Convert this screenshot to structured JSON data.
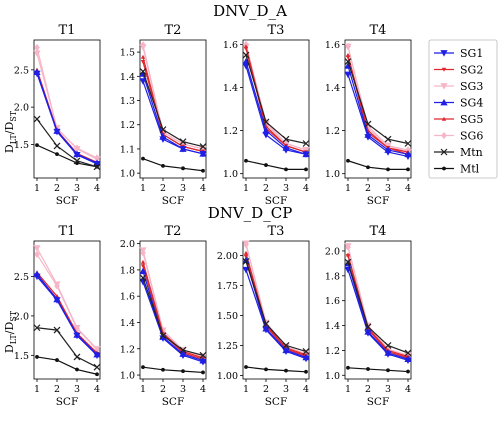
{
  "figure": {
    "row_titles": [
      "DNV_D_A",
      "DNV_D_CP"
    ],
    "panel_titles": [
      "T1",
      "T2",
      "T3",
      "T4"
    ],
    "xlabel": "SCF",
    "ylabel_main": "D",
    "ylabel_sub1": "LT",
    "ylabel_slash": "/D",
    "ylabel_sub2": "ST",
    "legend_placement": "right of top row"
  },
  "chart_data": [
    {
      "type": "line",
      "group": "DNV_D_A",
      "title": "T1",
      "x": [
        1,
        2,
        3,
        4
      ],
      "xlim": [
        0.85,
        4.15
      ],
      "ylim": [
        1.05,
        2.9
      ],
      "yticks": [
        1.5,
        2.0,
        2.5
      ],
      "ytick_labels": [
        "1.5",
        "2.0",
        "2.5"
      ],
      "series": [
        {
          "name": "SG1",
          "values": [
            2.45,
            1.67,
            1.36,
            1.24
          ]
        },
        {
          "name": "SG2",
          "values": [
            2.46,
            1.68,
            1.37,
            1.25
          ]
        },
        {
          "name": "SG3",
          "values": [
            2.72,
            1.72,
            1.44,
            1.3
          ]
        },
        {
          "name": "SG4",
          "values": [
            2.47,
            1.68,
            1.37,
            1.25
          ]
        },
        {
          "name": "SG5",
          "values": [
            2.5,
            1.69,
            1.38,
            1.26
          ]
        },
        {
          "name": "SG6",
          "values": [
            2.8,
            1.71,
            1.45,
            1.32
          ]
        },
        {
          "name": "Mtn",
          "values": [
            1.84,
            1.48,
            1.28,
            1.2
          ]
        },
        {
          "name": "Mtl",
          "values": [
            1.49,
            1.37,
            1.25,
            1.2
          ]
        }
      ]
    },
    {
      "type": "line",
      "group": "DNV_D_A",
      "title": "T2",
      "x": [
        1,
        2,
        3,
        4
      ],
      "xlim": [
        0.85,
        4.15
      ],
      "ylim": [
        0.98,
        1.55
      ],
      "yticks": [
        1.0,
        1.1,
        1.2,
        1.3,
        1.4,
        1.5
      ],
      "ytick_labels": [
        "1.0",
        "1.1",
        "1.2",
        "1.3",
        "1.4",
        "1.5"
      ],
      "series": [
        {
          "name": "SG1",
          "values": [
            1.38,
            1.14,
            1.1,
            1.08
          ]
        },
        {
          "name": "SG2",
          "values": [
            1.46,
            1.16,
            1.11,
            1.09
          ]
        },
        {
          "name": "SG3",
          "values": [
            1.52,
            1.17,
            1.12,
            1.1
          ]
        },
        {
          "name": "SG4",
          "values": [
            1.41,
            1.15,
            1.1,
            1.08
          ]
        },
        {
          "name": "SG5",
          "values": [
            1.48,
            1.16,
            1.11,
            1.09
          ]
        },
        {
          "name": "SG6",
          "values": [
            1.53,
            1.17,
            1.12,
            1.1
          ]
        },
        {
          "name": "Mtn",
          "values": [
            1.42,
            1.18,
            1.13,
            1.11
          ]
        },
        {
          "name": "Mtl",
          "values": [
            1.06,
            1.03,
            1.02,
            1.01
          ]
        }
      ]
    },
    {
      "type": "line",
      "group": "DNV_D_A",
      "title": "T3",
      "x": [
        1,
        2,
        3,
        4
      ],
      "xlim": [
        0.85,
        4.15
      ],
      "ylim": [
        0.98,
        1.62
      ],
      "yticks": [
        1.0,
        1.2,
        1.4,
        1.6
      ],
      "ytick_labels": [
        "1.0",
        "1.2",
        "1.4",
        "1.6"
      ],
      "series": [
        {
          "name": "SG1",
          "values": [
            1.5,
            1.18,
            1.11,
            1.09
          ]
        },
        {
          "name": "SG2",
          "values": [
            1.58,
            1.21,
            1.13,
            1.1
          ]
        },
        {
          "name": "SG3",
          "values": [
            1.59,
            1.23,
            1.14,
            1.11
          ]
        },
        {
          "name": "SG4",
          "values": [
            1.52,
            1.2,
            1.12,
            1.09
          ]
        },
        {
          "name": "SG5",
          "values": [
            1.59,
            1.22,
            1.13,
            1.1
          ]
        },
        {
          "name": "SG6",
          "values": [
            1.6,
            1.24,
            1.14,
            1.11
          ]
        },
        {
          "name": "Mtn",
          "values": [
            1.55,
            1.24,
            1.16,
            1.14
          ]
        },
        {
          "name": "Mtl",
          "values": [
            1.06,
            1.04,
            1.02,
            1.02
          ]
        }
      ]
    },
    {
      "type": "line",
      "group": "DNV_D_A",
      "title": "T4",
      "x": [
        1,
        2,
        3,
        4
      ],
      "xlim": [
        0.85,
        4.15
      ],
      "ylim": [
        0.98,
        1.62
      ],
      "yticks": [
        1.0,
        1.2,
        1.4,
        1.6
      ],
      "ytick_labels": [
        "1.0",
        "1.2",
        "1.4",
        "1.6"
      ],
      "series": [
        {
          "name": "SG1",
          "values": [
            1.46,
            1.17,
            1.1,
            1.08
          ]
        },
        {
          "name": "SG2",
          "values": [
            1.54,
            1.19,
            1.12,
            1.09
          ]
        },
        {
          "name": "SG3",
          "values": [
            1.59,
            1.21,
            1.13,
            1.1
          ]
        },
        {
          "name": "SG4",
          "values": [
            1.5,
            1.18,
            1.11,
            1.09
          ]
        },
        {
          "name": "SG5",
          "values": [
            1.55,
            1.2,
            1.12,
            1.1
          ]
        },
        {
          "name": "SG6",
          "values": [
            1.59,
            1.22,
            1.13,
            1.11
          ]
        },
        {
          "name": "Mtn",
          "values": [
            1.52,
            1.23,
            1.16,
            1.14
          ]
        },
        {
          "name": "Mtl",
          "values": [
            1.06,
            1.03,
            1.02,
            1.02
          ]
        }
      ]
    },
    {
      "type": "line",
      "group": "DNV_D_CP",
      "title": "T1",
      "x": [
        1,
        2,
        3,
        4
      ],
      "xlim": [
        0.85,
        4.15
      ],
      "ylim": [
        1.2,
        2.95
      ],
      "yticks": [
        1.5,
        2.0,
        2.5
      ],
      "ytick_labels": [
        "1.5",
        "2.0",
        "2.5"
      ],
      "series": [
        {
          "name": "SG1",
          "values": [
            2.5,
            2.2,
            1.75,
            1.5
          ]
        },
        {
          "name": "SG2",
          "values": [
            2.52,
            2.22,
            1.77,
            1.52
          ]
        },
        {
          "name": "SG3",
          "values": [
            2.86,
            2.4,
            1.85,
            1.58
          ]
        },
        {
          "name": "SG4",
          "values": [
            2.53,
            2.21,
            1.76,
            1.51
          ]
        },
        {
          "name": "SG5",
          "values": [
            2.55,
            2.25,
            1.78,
            1.53
          ]
        },
        {
          "name": "SG6",
          "values": [
            2.78,
            2.38,
            1.84,
            1.57
          ]
        },
        {
          "name": "Mtn",
          "values": [
            1.85,
            1.82,
            1.48,
            1.35
          ]
        },
        {
          "name": "Mtl",
          "values": [
            1.48,
            1.44,
            1.32,
            1.26
          ]
        }
      ]
    },
    {
      "type": "line",
      "group": "DNV_D_CP",
      "title": "T2",
      "x": [
        1,
        2,
        3,
        4
      ],
      "xlim": [
        0.85,
        4.15
      ],
      "ylim": [
        0.97,
        2.02
      ],
      "yticks": [
        1.0,
        1.2,
        1.4,
        1.6,
        1.8,
        2.0
      ],
      "ytick_labels": [
        "1.0",
        "1.2",
        "1.4",
        "1.6",
        "1.8",
        "2.0"
      ],
      "series": [
        {
          "name": "SG1",
          "values": [
            1.71,
            1.28,
            1.15,
            1.1
          ]
        },
        {
          "name": "SG2",
          "values": [
            1.83,
            1.31,
            1.17,
            1.12
          ]
        },
        {
          "name": "SG3",
          "values": [
            1.95,
            1.34,
            1.19,
            1.14
          ]
        },
        {
          "name": "SG4",
          "values": [
            1.79,
            1.29,
            1.16,
            1.11
          ]
        },
        {
          "name": "SG5",
          "values": [
            1.86,
            1.32,
            1.18,
            1.13
          ]
        },
        {
          "name": "SG6",
          "values": [
            1.93,
            1.34,
            1.19,
            1.14
          ]
        },
        {
          "name": "Mtn",
          "values": [
            1.74,
            1.3,
            1.19,
            1.15
          ]
        },
        {
          "name": "Mtl",
          "values": [
            1.06,
            1.04,
            1.03,
            1.02
          ]
        }
      ]
    },
    {
      "type": "line",
      "group": "DNV_D_CP",
      "title": "T3",
      "x": [
        1,
        2,
        3,
        4
      ],
      "xlim": [
        0.85,
        4.15
      ],
      "ylim": [
        0.97,
        2.12
      ],
      "yticks": [
        1.0,
        1.25,
        1.5,
        1.75,
        2.0
      ],
      "ytick_labels": [
        "1.00",
        "1.25",
        "1.50",
        "1.75",
        "2.00"
      ],
      "series": [
        {
          "name": "SG1",
          "values": [
            1.88,
            1.38,
            1.2,
            1.14
          ]
        },
        {
          "name": "SG2",
          "values": [
            1.99,
            1.41,
            1.22,
            1.16
          ]
        },
        {
          "name": "SG3",
          "values": [
            2.1,
            1.44,
            1.24,
            1.18
          ]
        },
        {
          "name": "SG4",
          "values": [
            1.96,
            1.39,
            1.21,
            1.15
          ]
        },
        {
          "name": "SG5",
          "values": [
            2.02,
            1.42,
            1.23,
            1.17
          ]
        },
        {
          "name": "SG6",
          "values": [
            2.09,
            1.44,
            1.24,
            1.18
          ]
        },
        {
          "name": "Mtn",
          "values": [
            1.95,
            1.43,
            1.25,
            1.2
          ]
        },
        {
          "name": "Mtl",
          "values": [
            1.07,
            1.05,
            1.04,
            1.03
          ]
        }
      ]
    },
    {
      "type": "line",
      "group": "DNV_D_CP",
      "title": "T4",
      "x": [
        1,
        2,
        3,
        4
      ],
      "xlim": [
        0.85,
        4.15
      ],
      "ylim": [
        0.97,
        2.08
      ],
      "yticks": [
        1.0,
        1.2,
        1.4,
        1.6,
        1.8,
        2.0
      ],
      "ytick_labels": [
        "1.0",
        "1.2",
        "1.4",
        "1.6",
        "1.8",
        "2.0"
      ],
      "series": [
        {
          "name": "SG1",
          "values": [
            1.85,
            1.34,
            1.17,
            1.12
          ]
        },
        {
          "name": "SG2",
          "values": [
            1.96,
            1.37,
            1.19,
            1.14
          ]
        },
        {
          "name": "SG3",
          "values": [
            2.04,
            1.4,
            1.21,
            1.16
          ]
        },
        {
          "name": "SG4",
          "values": [
            1.9,
            1.35,
            1.18,
            1.13
          ]
        },
        {
          "name": "SG5",
          "values": [
            1.97,
            1.38,
            1.2,
            1.15
          ]
        },
        {
          "name": "SG6",
          "values": [
            2.03,
            1.4,
            1.21,
            1.16
          ]
        },
        {
          "name": "Mtn",
          "values": [
            1.91,
            1.39,
            1.24,
            1.18
          ]
        },
        {
          "name": "Mtl",
          "values": [
            1.06,
            1.05,
            1.04,
            1.03
          ]
        }
      ]
    }
  ],
  "series_styles": [
    {
      "name": "SG1",
      "color": "#1f1fe6",
      "marker": "tri-down"
    },
    {
      "name": "SG2",
      "color": "#e0282e",
      "marker": "tri-down-small"
    },
    {
      "name": "SG3",
      "color": "#f7b6c8",
      "marker": "tri-down"
    },
    {
      "name": "SG4",
      "color": "#1f1fe6",
      "marker": "tri-up"
    },
    {
      "name": "SG5",
      "color": "#e0282e",
      "marker": "tri-up-small"
    },
    {
      "name": "SG6",
      "color": "#f7b6c8",
      "marker": "diamond"
    },
    {
      "name": "Mtn",
      "color": "#222222",
      "marker": "x"
    },
    {
      "name": "Mtl",
      "color": "#111111",
      "marker": "dot"
    }
  ]
}
